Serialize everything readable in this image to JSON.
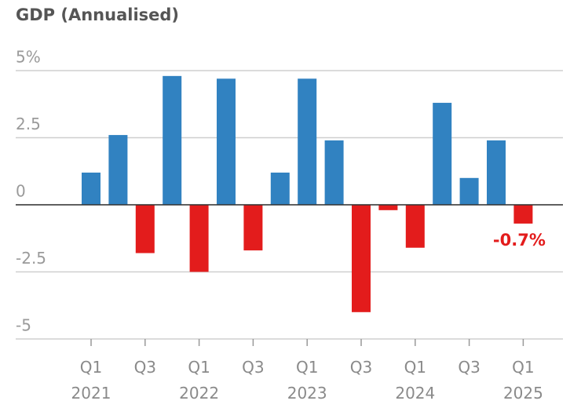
{
  "chart_data": {
    "type": "bar",
    "title": "GDP (Annualised)",
    "categories": [
      "Q1\n2021",
      null,
      "Q3",
      null,
      "Q1\n2022",
      null,
      "Q3",
      null,
      "Q1\n2023",
      null,
      "Q3",
      null,
      "Q1\n2024",
      null,
      "Q3",
      null,
      "Q1\n2025"
    ],
    "values": [
      1.2,
      2.6,
      -1.8,
      4.8,
      -2.5,
      4.7,
      -1.7,
      1.2,
      4.7,
      2.4,
      -4.0,
      -0.2,
      -1.6,
      3.8,
      1.0,
      2.4,
      -0.7
    ],
    "value_labels": [
      null,
      null,
      null,
      null,
      null,
      null,
      null,
      null,
      null,
      null,
      null,
      null,
      null,
      null,
      null,
      null,
      "-0.7%"
    ],
    "positive_color": "#3182c1",
    "negative_color": "#e31c1c",
    "ylim": [
      -5,
      5
    ],
    "yticks": [
      -5,
      -2.5,
      0,
      2.5,
      {
        "value": 5,
        "label": "5%"
      }
    ],
    "grid": true
  }
}
